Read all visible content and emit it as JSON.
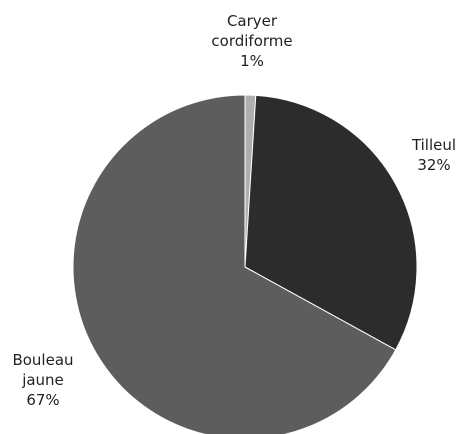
{
  "chart_data": {
    "type": "pie",
    "slices": [
      {
        "label": [
          "Caryer",
          "cordiforme"
        ],
        "value": 1,
        "display": "1%",
        "color": "#aeaeae"
      },
      {
        "label": [
          "Tilleul"
        ],
        "value": 32,
        "display": "32%",
        "color": "#2c2c2c"
      },
      {
        "label": [
          "Bouleau",
          "jaune"
        ],
        "value": 67,
        "display": "67%",
        "color": "#5d5d5d"
      }
    ],
    "start": "12 o'clock",
    "direction": "clockwise",
    "legend": "none",
    "data_labels": "outside"
  }
}
